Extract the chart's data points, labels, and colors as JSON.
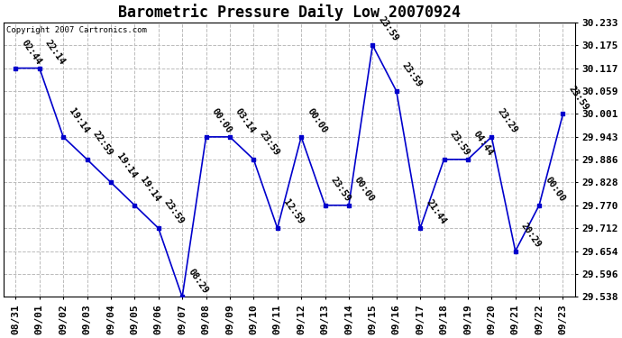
{
  "title": "Barometric Pressure Daily Low 20070924",
  "copyright_text": "Copyright 2007 Cartronics.com",
  "x_labels": [
    "08/31",
    "09/01",
    "09/02",
    "09/03",
    "09/04",
    "09/05",
    "09/06",
    "09/07",
    "09/08",
    "09/09",
    "09/10",
    "09/11",
    "09/12",
    "09/13",
    "09/14",
    "09/15",
    "09/16",
    "09/17",
    "09/18",
    "09/19",
    "09/20",
    "09/21",
    "09/22",
    "09/23"
  ],
  "y_values": [
    30.117,
    30.117,
    29.943,
    29.886,
    29.828,
    29.77,
    29.712,
    29.538,
    29.943,
    29.943,
    29.886,
    29.712,
    29.943,
    29.77,
    29.77,
    30.175,
    30.059,
    29.712,
    29.886,
    29.886,
    29.943,
    29.654,
    29.77,
    30.001
  ],
  "point_labels": [
    "02:44",
    "22:14",
    "19:14",
    "22:59",
    "19:14",
    "19:14",
    "23:59",
    "08:29",
    "00:00",
    "03:14",
    "23:59",
    "12:59",
    "00:00",
    "23:59",
    "00:00",
    "23:59",
    "23:59",
    "21:44",
    "23:59",
    "04:44",
    "23:29",
    "20:29",
    "00:00",
    "23:59"
  ],
  "y_ticks": [
    29.538,
    29.596,
    29.654,
    29.712,
    29.77,
    29.828,
    29.886,
    29.943,
    30.001,
    30.059,
    30.117,
    30.175,
    30.233
  ],
  "y_tick_labels": [
    "29.538",
    "29.596",
    "29.654",
    "29.712",
    "29.770",
    "29.828",
    "29.886",
    "29.943",
    "30.001",
    "30.059",
    "30.117",
    "30.175",
    "30.233"
  ],
  "ylim_min": 29.538,
  "ylim_max": 30.233,
  "line_color": "#0000CC",
  "marker_color": "#0000CC",
  "bg_color": "#FFFFFF",
  "grid_color": "#BBBBBB",
  "title_fontsize": 12,
  "label_fontsize": 8,
  "point_label_fontsize": 7.5
}
